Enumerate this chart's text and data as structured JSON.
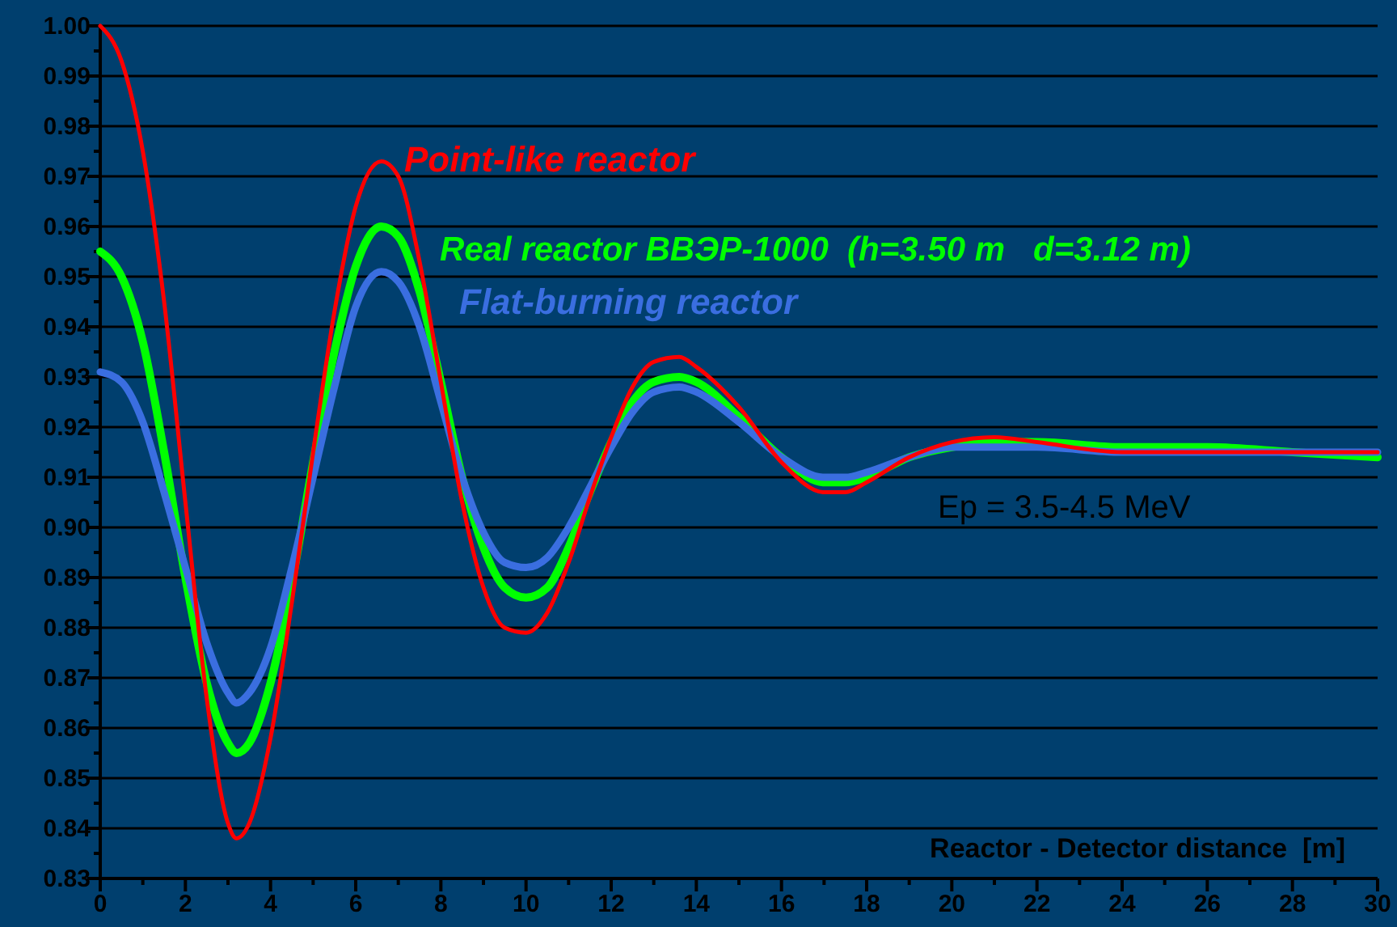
{
  "chart_data": {
    "type": "line",
    "xlabel": "Reactor - Detector distance  [m]",
    "annotations": [
      "Ep = 3.5-4.5 MeV"
    ],
    "x": [
      0,
      0.5,
      1,
      1.5,
      2,
      2.5,
      3,
      3.2,
      3.5,
      4,
      4.5,
      5,
      5.5,
      6,
      6.6,
      7,
      7.5,
      8,
      8.5,
      9,
      9.5,
      10,
      10.5,
      11,
      11.5,
      12,
      12.5,
      13,
      13.6,
      14,
      15,
      16,
      17,
      17.5,
      18,
      19,
      20,
      21,
      22,
      24,
      26,
      28,
      30
    ],
    "series": [
      {
        "name": "Point-like reactor",
        "color": "#ff0000",
        "values": [
          1.0,
          0.993,
          0.975,
          0.945,
          0.905,
          0.866,
          0.841,
          0.838,
          0.841,
          0.858,
          0.885,
          0.915,
          0.943,
          0.964,
          0.973,
          0.97,
          0.953,
          0.929,
          0.905,
          0.888,
          0.88,
          0.879,
          0.883,
          0.893,
          0.906,
          0.918,
          0.928,
          0.933,
          0.934,
          0.932,
          0.924,
          0.913,
          0.907,
          0.907,
          0.909,
          0.914,
          0.917,
          0.918,
          0.917,
          0.915,
          0.915,
          0.915,
          0.915
        ]
      },
      {
        "name": "Real reactor ВВЭР-1000  (h=3.50 m   d=3.12 m)",
        "color": "#00ff00",
        "values": [
          0.955,
          0.95,
          0.937,
          0.915,
          0.89,
          0.869,
          0.857,
          0.855,
          0.857,
          0.869,
          0.889,
          0.913,
          0.935,
          0.952,
          0.96,
          0.958,
          0.947,
          0.929,
          0.91,
          0.896,
          0.888,
          0.886,
          0.888,
          0.896,
          0.907,
          0.917,
          0.925,
          0.929,
          0.93,
          0.929,
          0.922,
          0.914,
          0.909,
          0.909,
          0.91,
          0.914,
          0.916,
          0.917,
          0.917,
          0.916,
          0.916,
          0.915,
          0.914
        ]
      },
      {
        "name": "Flat-burning reactor",
        "color": "#3a6ee0",
        "values": [
          0.931,
          0.929,
          0.921,
          0.907,
          0.892,
          0.877,
          0.867,
          0.865,
          0.867,
          0.876,
          0.892,
          0.91,
          0.928,
          0.944,
          0.951,
          0.949,
          0.94,
          0.925,
          0.91,
          0.899,
          0.893,
          0.892,
          0.894,
          0.9,
          0.908,
          0.916,
          0.923,
          0.927,
          0.928,
          0.927,
          0.921,
          0.914,
          0.91,
          0.91,
          0.911,
          0.914,
          0.916,
          0.916,
          0.916,
          0.915,
          0.915,
          0.915,
          0.915
        ]
      }
    ],
    "xlim": [
      0,
      30
    ],
    "xticks": [
      0,
      {
        "value": 1,
        "label": null
      },
      2,
      {
        "value": 3,
        "label": null
      },
      4,
      {
        "value": 5,
        "label": null
      },
      6,
      {
        "value": 7,
        "label": null
      },
      8,
      {
        "value": 9,
        "label": null
      },
      10,
      {
        "value": 11,
        "label": null
      },
      12,
      {
        "value": 13,
        "label": null
      },
      14,
      {
        "value": 15,
        "label": null
      },
      16,
      {
        "value": 17,
        "label": null
      },
      18,
      {
        "value": 19,
        "label": null
      },
      20,
      {
        "value": 21,
        "label": null
      },
      22,
      {
        "value": 23,
        "label": null
      },
      24,
      {
        "value": 25,
        "label": null
      },
      26,
      {
        "value": 27,
        "label": null
      },
      28,
      {
        "value": 29,
        "label": null
      },
      30
    ],
    "ylim": [
      0.83,
      1.0
    ],
    "yticks": [
      0.83,
      {
        "value": 0.835,
        "label": null
      },
      0.84,
      {
        "value": 0.845,
        "label": null
      },
      0.85,
      {
        "value": 0.855,
        "label": null
      },
      0.86,
      {
        "value": 0.865,
        "label": null
      },
      0.87,
      {
        "value": 0.875,
        "label": null
      },
      0.88,
      {
        "value": 0.885,
        "label": null
      },
      0.89,
      {
        "value": 0.895,
        "label": null
      },
      {
        "value": 0.9,
        "label": "0.90"
      },
      {
        "value": 0.905,
        "label": null
      },
      0.91,
      {
        "value": 0.915,
        "label": null
      },
      0.92,
      {
        "value": 0.925,
        "label": null
      },
      0.93,
      {
        "value": 0.935,
        "label": null
      },
      0.94,
      {
        "value": 0.945,
        "label": null
      },
      0.95,
      {
        "value": 0.955,
        "label": null
      },
      0.96,
      {
        "value": 0.965,
        "label": null
      },
      0.97,
      {
        "value": 0.975,
        "label": null
      },
      0.98,
      {
        "value": 0.985,
        "label": null
      },
      0.99,
      {
        "value": 0.995,
        "label": null
      },
      {
        "value": 1.0,
        "label": "1.00"
      }
    ],
    "grid": "y",
    "marker": "none",
    "line_style": "solid"
  }
}
